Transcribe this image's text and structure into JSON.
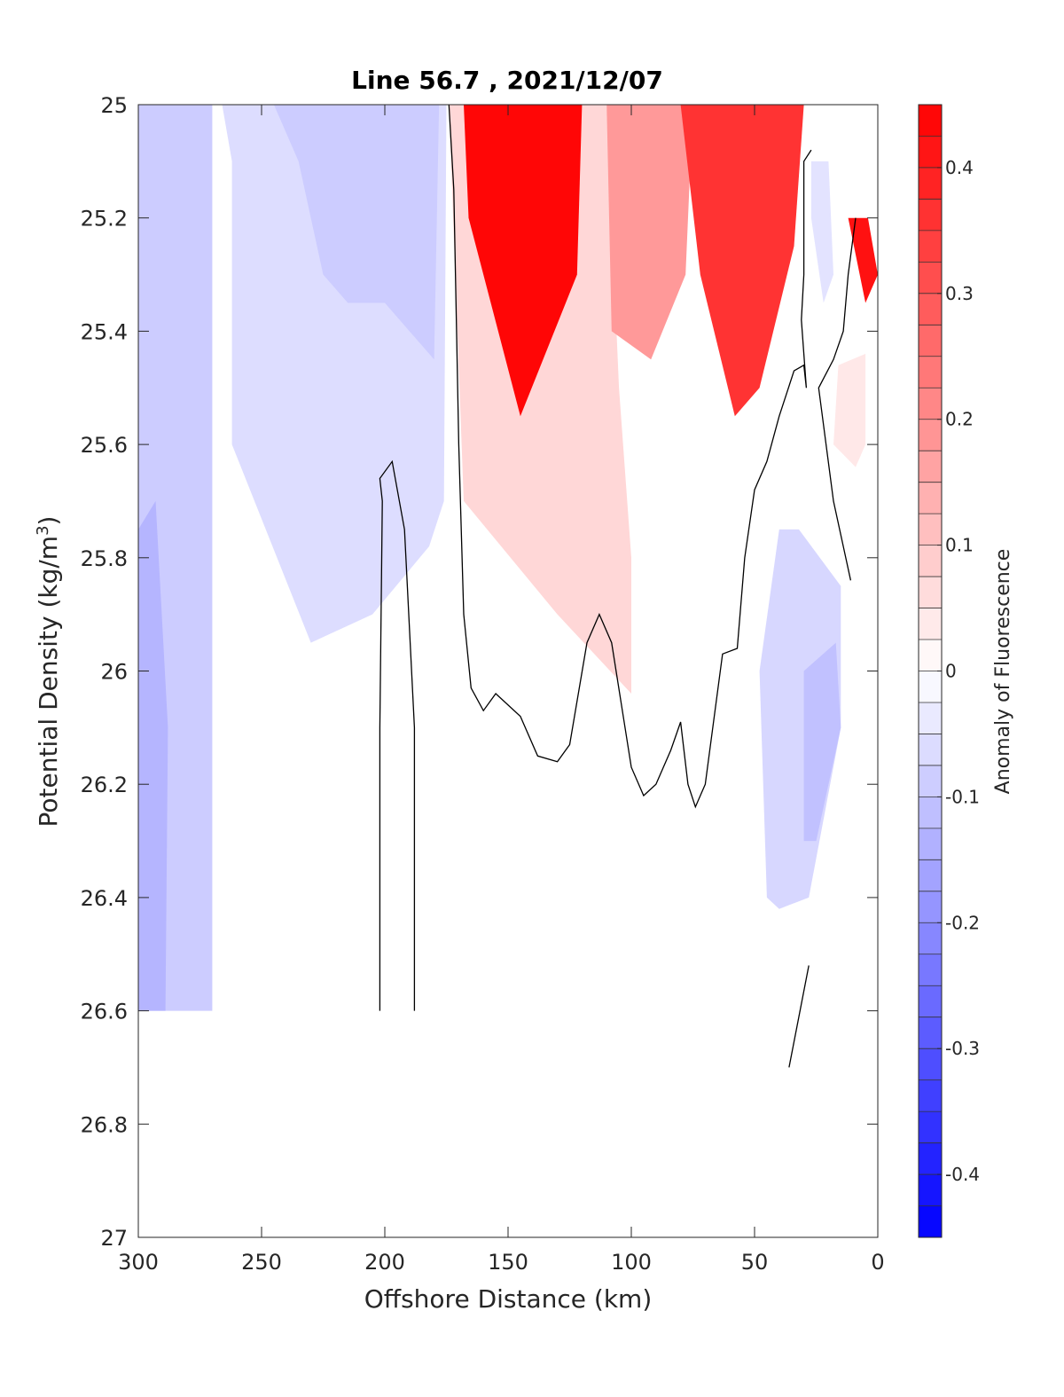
{
  "chart_data": {
    "type": "heatmap",
    "title": "Line 56.7 , 2021/12/07",
    "xlabel": "Offshore Distance (km)",
    "ylabel": "Potential Density (kg/m",
    "ylabel_sup": "3",
    "ylabel_end": ")",
    "colorbar_label": "Anomaly of Fluorescence",
    "xlim": [
      300,
      0
    ],
    "ylim": [
      25,
      27
    ],
    "xticks": [
      "300",
      "250",
      "200",
      "150",
      "100",
      "50",
      "0"
    ],
    "xtick_values": [
      300,
      250,
      200,
      150,
      100,
      50,
      0
    ],
    "yticks": [
      "25",
      "25.2",
      "25.4",
      "25.6",
      "25.8",
      "26",
      "26.2",
      "26.4",
      "26.6",
      "26.8",
      "27"
    ],
    "ytick_values": [
      25,
      25.2,
      25.4,
      25.6,
      25.8,
      26,
      26.2,
      26.4,
      26.6,
      26.8,
      27
    ],
    "colorbar_range": [
      -0.45,
      0.45
    ],
    "colorbar_ticks": [
      "0.4",
      "0.3",
      "0.2",
      "0.1",
      "0",
      "-0.1",
      "-0.2",
      "-0.3",
      "-0.4"
    ],
    "colorbar_tick_values": [
      0.4,
      0.3,
      0.2,
      0.1,
      0,
      -0.1,
      -0.2,
      -0.3,
      -0.4
    ],
    "colormap": {
      "negative": "#0000ff",
      "zero": "#ffffff",
      "positive": "#ff0000"
    },
    "regions": [
      {
        "name": "offshore-low-1",
        "value": -0.09,
        "points": [
          [
            300,
            25
          ],
          [
            270,
            25
          ],
          [
            270,
            26.6
          ],
          [
            300,
            26.6
          ]
        ]
      },
      {
        "name": "offshore-low-2",
        "value": -0.13,
        "points": [
          [
            300,
            25.75
          ],
          [
            293,
            25.7
          ],
          [
            288,
            26.1
          ],
          [
            289,
            26.6
          ],
          [
            300,
            26.6
          ]
        ]
      },
      {
        "name": "mid-low-1",
        "value": -0.06,
        "points": [
          [
            266,
            25
          ],
          [
            175,
            25
          ],
          [
            176,
            25.7
          ],
          [
            182,
            25.78
          ],
          [
            205,
            25.9
          ],
          [
            230,
            25.95
          ],
          [
            262,
            25.6
          ],
          [
            262,
            25.1
          ]
        ]
      },
      {
        "name": "mid-low-2",
        "value": -0.09,
        "points": [
          [
            245,
            25
          ],
          [
            178,
            25
          ],
          [
            180,
            25.45
          ],
          [
            200,
            25.35
          ],
          [
            215,
            25.35
          ],
          [
            225,
            25.3
          ],
          [
            235,
            25.1
          ]
        ]
      },
      {
        "name": "high-1",
        "value": 0.07,
        "points": [
          [
            174,
            25
          ],
          [
            110,
            25
          ],
          [
            105,
            25.5
          ],
          [
            100,
            25.8
          ],
          [
            100,
            26.04
          ],
          [
            130,
            25.9
          ],
          [
            168,
            25.7
          ]
        ]
      },
      {
        "name": "high-2",
        "value": 0.44,
        "points": [
          [
            168,
            25
          ],
          [
            120,
            25
          ],
          [
            122,
            25.3
          ],
          [
            145,
            25.55
          ],
          [
            166,
            25.2
          ]
        ]
      },
      {
        "name": "high-3",
        "value": 0.18,
        "points": [
          [
            110,
            25
          ],
          [
            75,
            25
          ],
          [
            78,
            25.3
          ],
          [
            92,
            25.45
          ],
          [
            108,
            25.4
          ]
        ]
      },
      {
        "name": "high-4",
        "value": 0.36,
        "points": [
          [
            80,
            25
          ],
          [
            30,
            25
          ],
          [
            34,
            25.25
          ],
          [
            48,
            25.5
          ],
          [
            58,
            25.55
          ],
          [
            72,
            25.3
          ]
        ]
      },
      {
        "name": "coast-high",
        "value": 0.42,
        "points": [
          [
            12,
            25.2
          ],
          [
            4,
            25.2
          ],
          [
            0,
            25.3
          ],
          [
            5,
            25.35
          ]
        ]
      },
      {
        "name": "coast-high-2",
        "value": 0.04,
        "points": [
          [
            5,
            25.44
          ],
          [
            16,
            25.46
          ],
          [
            18,
            25.6
          ],
          [
            9,
            25.64
          ],
          [
            5,
            25.6
          ]
        ]
      },
      {
        "name": "near-coast-low",
        "value": -0.07,
        "points": [
          [
            40,
            25.75
          ],
          [
            32,
            25.75
          ],
          [
            15,
            25.85
          ],
          [
            15,
            26.1
          ],
          [
            28,
            26.4
          ],
          [
            40,
            26.42
          ],
          [
            45,
            26.4
          ],
          [
            48,
            26.0
          ]
        ]
      },
      {
        "name": "near-coast-low-2",
        "value": -0.11,
        "points": [
          [
            30,
            26.0
          ],
          [
            17,
            25.95
          ],
          [
            15,
            26.1
          ],
          [
            25,
            26.3
          ],
          [
            30,
            26.3
          ]
        ]
      },
      {
        "name": "top-coast-low",
        "value": -0.05,
        "points": [
          [
            27,
            25.1
          ],
          [
            20,
            25.1
          ],
          [
            18,
            25.3
          ],
          [
            22,
            25.35
          ],
          [
            27,
            25.2
          ]
        ]
      }
    ],
    "contour_zero": [
      [
        [
          174,
          25
        ],
        [
          172,
          25.15
        ],
        [
          170,
          25.6
        ],
        [
          168,
          25.9
        ],
        [
          165,
          26.03
        ],
        [
          160,
          26.07
        ],
        [
          155,
          26.04
        ],
        [
          145,
          26.08
        ],
        [
          138,
          26.15
        ],
        [
          130,
          26.16
        ],
        [
          125,
          26.13
        ],
        [
          118,
          25.95
        ],
        [
          113,
          25.9
        ],
        [
          108,
          25.95
        ],
        [
          100,
          26.17
        ],
        [
          95,
          26.22
        ],
        [
          90,
          26.2
        ],
        [
          84,
          26.14
        ],
        [
          80,
          26.09
        ],
        [
          77,
          26.2
        ],
        [
          74,
          26.24
        ],
        [
          70,
          26.2
        ],
        [
          63,
          25.97
        ],
        [
          57,
          25.96
        ],
        [
          54,
          25.8
        ],
        [
          50,
          25.68
        ],
        [
          45,
          25.63
        ],
        [
          40,
          25.55
        ],
        [
          34,
          25.47
        ],
        [
          30,
          25.46
        ],
        [
          29,
          25.5
        ],
        [
          31,
          25.38
        ],
        [
          30,
          25.3
        ],
        [
          30,
          25.1
        ],
        [
          27,
          25.08
        ]
      ],
      [
        [
          202,
          26.6
        ],
        [
          202,
          26.1
        ],
        [
          201,
          25.7
        ],
        [
          202,
          25.66
        ],
        [
          197,
          25.63
        ],
        [
          192,
          25.75
        ],
        [
          188,
          26.1
        ],
        [
          188,
          26.6
        ]
      ],
      [
        [
          9,
          25.2
        ],
        [
          12,
          25.3
        ],
        [
          14,
          25.4
        ],
        [
          18,
          25.45
        ],
        [
          24,
          25.5
        ],
        [
          18,
          25.7
        ],
        [
          11,
          25.84
        ]
      ],
      [
        [
          28,
          26.52
        ],
        [
          36,
          26.7
        ]
      ]
    ]
  }
}
